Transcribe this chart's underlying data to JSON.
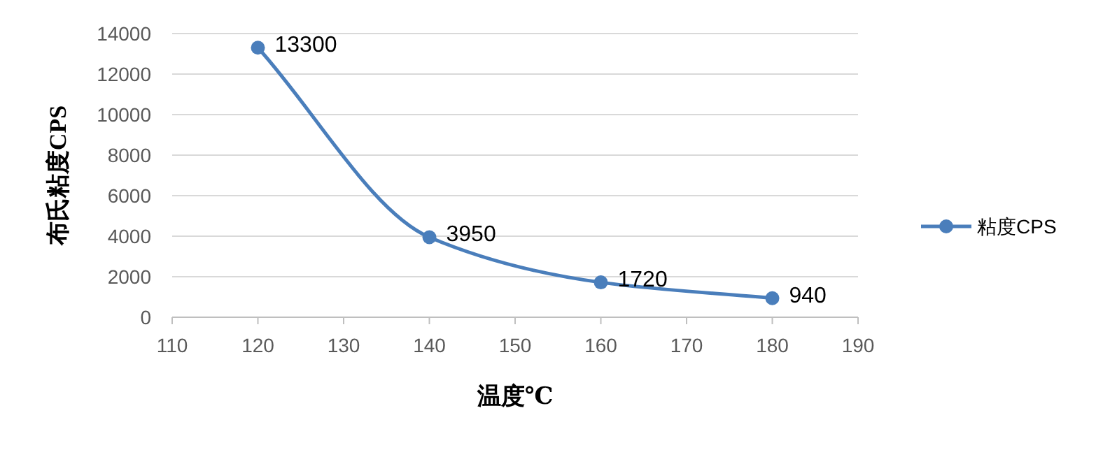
{
  "chart_data": {
    "type": "line",
    "xlabel": "温度℃",
    "ylabel": "布氏粘度CPS",
    "x": [
      120,
      140,
      160,
      180
    ],
    "series": [
      {
        "name": "粘度CPS",
        "color": "#4a7ebb",
        "values": [
          13300,
          3950,
          1720,
          940
        ]
      }
    ],
    "xlim": [
      110,
      190
    ],
    "xticks": [
      110,
      120,
      130,
      140,
      150,
      160,
      170,
      180,
      190
    ],
    "ylim": [
      0,
      14000
    ],
    "yticks": [
      0,
      2000,
      4000,
      6000,
      8000,
      10000,
      12000,
      14000
    ],
    "grid": "y",
    "legend": "right",
    "marker": "circle",
    "line_style": "solid",
    "data_labels": true
  }
}
